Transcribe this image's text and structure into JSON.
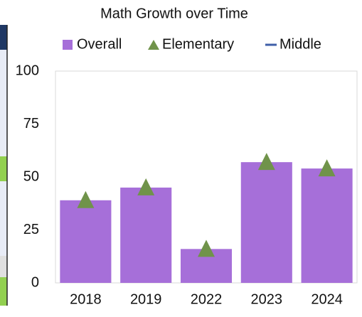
{
  "chart_data": {
    "type": "bar",
    "title": "Math Growth over Time",
    "categories": [
      "2018",
      "2019",
      "2022",
      "2023",
      "2024"
    ],
    "series": [
      {
        "name": "Overall",
        "type": "bar",
        "color": "#a66fd9",
        "values": [
          39,
          45,
          16,
          57,
          54
        ]
      },
      {
        "name": "Elementary",
        "type": "marker",
        "color": "#70934a",
        "values": [
          39,
          45,
          16,
          57,
          54
        ]
      },
      {
        "name": "Middle",
        "type": "line",
        "color": "#3f5fa8",
        "values": [
          null,
          null,
          null,
          null,
          null
        ]
      }
    ],
    "ylim": [
      0,
      100
    ],
    "yticks": [
      0,
      25,
      50,
      75,
      100
    ],
    "grid": false,
    "legend": "top"
  }
}
